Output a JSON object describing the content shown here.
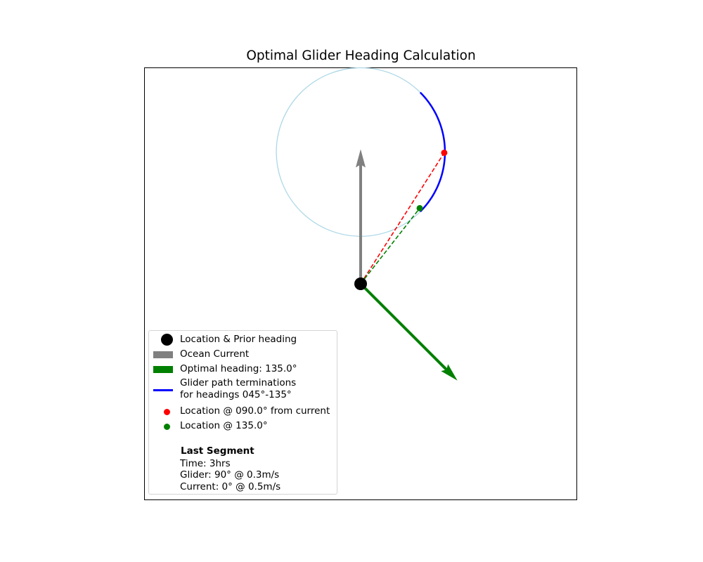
{
  "chart_data": {
    "type": "vector-plot",
    "title": "Optimal Glider Heading Calculation",
    "xlim": [
      -0.3,
      0.3
    ],
    "ylim": [
      -0.3,
      0.3
    ],
    "grid": false,
    "axis_ticks": false,
    "legend_placement": "lower-left",
    "origin": {
      "x": 0,
      "y": 0
    },
    "ocean_current": {
      "heading_deg": 0,
      "length": 0.187,
      "color": "#808080"
    },
    "optimal_heading": {
      "heading_deg": 135.0,
      "length": 0.19,
      "color": "#008000"
    },
    "reachable_circle": {
      "center": [
        0,
        0.183
      ],
      "radius": 0.117,
      "color": "#add8e6"
    },
    "arc_headings_deg": [
      45,
      135
    ],
    "arc_color": "#0000ff",
    "location_090": {
      "x": 0.116,
      "y": 0.182,
      "color": "#ff0000"
    },
    "location_135": {
      "x": 0.082,
      "y": 0.105,
      "color": "#008000"
    }
  },
  "legend": {
    "items": [
      {
        "label": "Location & Prior heading"
      },
      {
        "label": "Ocean Current"
      },
      {
        "label": "Optimal heading: 135.0°"
      },
      {
        "label_line1": "Glider path terminations",
        "label_line2": "for headings 045°-135°"
      },
      {
        "label": "Location @ 090.0° from current"
      },
      {
        "label": "Location @ 135.0°"
      }
    ],
    "segment": {
      "title": "Last Segment",
      "time": "Time: 3hrs",
      "glider": "Glider: 90° @ 0.3m/s",
      "current": "Current: 0° @ 0.5m/s"
    }
  }
}
